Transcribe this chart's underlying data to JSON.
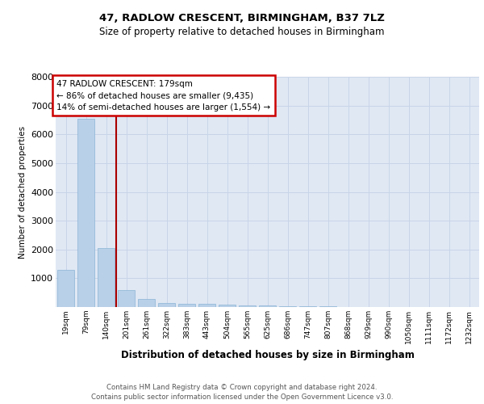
{
  "title": "47, RADLOW CRESCENT, BIRMINGHAM, B37 7LZ",
  "subtitle": "Size of property relative to detached houses in Birmingham",
  "xlabel": "Distribution of detached houses by size in Birmingham",
  "ylabel": "Number of detached properties",
  "categories": [
    "19sqm",
    "79sqm",
    "140sqm",
    "201sqm",
    "261sqm",
    "322sqm",
    "383sqm",
    "443sqm",
    "504sqm",
    "565sqm",
    "625sqm",
    "686sqm",
    "747sqm",
    "807sqm",
    "868sqm",
    "929sqm",
    "990sqm",
    "1050sqm",
    "1111sqm",
    "1172sqm",
    "1232sqm"
  ],
  "values": [
    1300,
    6550,
    2050,
    600,
    280,
    150,
    100,
    100,
    80,
    60,
    50,
    30,
    20,
    15,
    10,
    8,
    5,
    3,
    2,
    1,
    1
  ],
  "bar_color": "#b8d0e8",
  "bar_edge_color": "#8ab4d4",
  "grid_color": "#c8d4e8",
  "background_color": "#e0e8f4",
  "vline_x": 2.5,
  "vline_color": "#aa0000",
  "annotation_text": "47 RADLOW CRESCENT: 179sqm\n← 86% of detached houses are smaller (9,435)\n14% of semi-detached houses are larger (1,554) →",
  "annotation_box_color": "#cc0000",
  "ylim": [
    0,
    8000
  ],
  "yticks": [
    0,
    1000,
    2000,
    3000,
    4000,
    5000,
    6000,
    7000,
    8000
  ],
  "footer_line1": "Contains HM Land Registry data © Crown copyright and database right 2024.",
  "footer_line2": "Contains public sector information licensed under the Open Government Licence v3.0."
}
